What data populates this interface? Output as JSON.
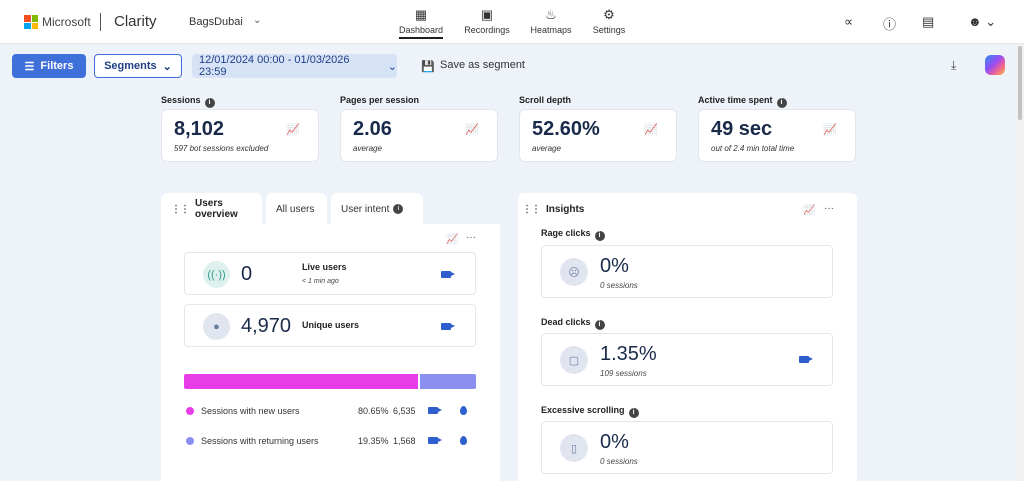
{
  "header": {
    "brand": "Microsoft",
    "product": "Clarity",
    "project": "BagsDubai",
    "nav": [
      {
        "label": "Dashboard",
        "icon": "dashboard-icon",
        "active": true
      },
      {
        "label": "Recordings",
        "icon": "recordings-icon",
        "active": false
      },
      {
        "label": "Heatmaps",
        "icon": "heatmaps-icon",
        "active": false
      },
      {
        "label": "Settings",
        "icon": "settings-icon",
        "active": false
      }
    ]
  },
  "toolbar": {
    "filters_label": "Filters",
    "segments_label": "Segments",
    "date_range": "12/01/2024 00:00 - 01/03/2026 23:59",
    "save_segment_label": "Save as segment"
  },
  "metrics": [
    {
      "label": "Sessions",
      "value": "8,102",
      "sub": "597 bot sessions excluded",
      "info": true
    },
    {
      "label": "Pages per session",
      "value": "2.06",
      "sub": "average",
      "info": false
    },
    {
      "label": "Scroll depth",
      "value": "52.60%",
      "sub": "average",
      "info": false
    },
    {
      "label": "Active time spent",
      "value": "49 sec",
      "sub": "out of 2.4 min total time",
      "info": true
    }
  ],
  "users_panel": {
    "tabs": [
      {
        "label": "Users overview",
        "active": true
      },
      {
        "label": "All users",
        "active": false
      },
      {
        "label": "User intent",
        "active": false
      }
    ],
    "live": {
      "value": "0",
      "title": "Live users",
      "sub": "< 1 min ago"
    },
    "unique": {
      "value": "4,970",
      "title": "Unique users"
    },
    "split": {
      "new": {
        "label": "Sessions with new users",
        "pct": "80.65%",
        "count": "6,535",
        "fraction": 0.8065,
        "color": "#e83ce8"
      },
      "returning": {
        "label": "Sessions with returning users",
        "pct": "19.35%",
        "count": "1,568",
        "fraction": 0.1935,
        "color": "#8a8ff0"
      }
    }
  },
  "insights": {
    "title": "Insights",
    "items": [
      {
        "label": "Rage clicks",
        "value": "0%",
        "sub": "0 sessions",
        "icon": "angry-face-icon",
        "recording": false
      },
      {
        "label": "Dead clicks",
        "value": "1.35%",
        "sub": "109 sessions",
        "icon": "dead-click-icon",
        "recording": true
      },
      {
        "label": "Excessive scrolling",
        "value": "0%",
        "sub": "0 sessions",
        "icon": "scroll-device-icon",
        "recording": false
      }
    ]
  }
}
